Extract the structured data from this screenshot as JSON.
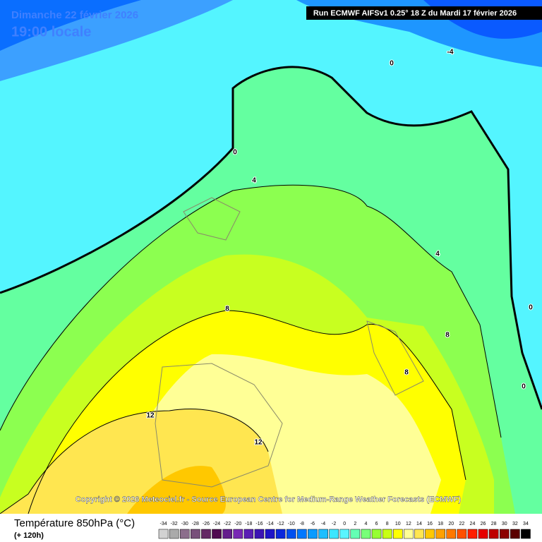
{
  "header": {
    "date": "Dimanche 22 février 2026",
    "time": "19:00 locale",
    "run": "Run ECMWF AIFSv1 0.25° 18 Z du Mardi 17 février 2026"
  },
  "contour_labels": [
    "0",
    "-4",
    "0",
    "4",
    "4",
    "0",
    "8",
    "8",
    "8",
    "0",
    "12",
    "12"
  ],
  "copyright": "Copyright © 2026 Meteociel.fr - Source European Centre for Medium-Range Weather Forecasts (ECMWF)",
  "legend": {
    "title": "Température 850hPa (°C)",
    "subtitle": "(+ 120h)",
    "ticks": [
      -34,
      -32,
      -30,
      -28,
      -26,
      -24,
      -22,
      -20,
      -18,
      -16,
      -14,
      -12,
      -10,
      -8,
      -6,
      -4,
      -2,
      0,
      2,
      4,
      6,
      8,
      10,
      12,
      14,
      16,
      18,
      20,
      22,
      24,
      26,
      28,
      30,
      32,
      34
    ],
    "colors": [
      "#d2d2d2",
      "#aaaaaa",
      "#8c6e8c",
      "#78507a",
      "#642864",
      "#500a50",
      "#641e8c",
      "#7828b4",
      "#5a1eb4",
      "#3c14b4",
      "#1e14c8",
      "#0a28dc",
      "#0050f0",
      "#0078ff",
      "#0a9bff",
      "#1ebeff",
      "#3ce6ff",
      "#5af5ff",
      "#64ffb4",
      "#78ff78",
      "#96ff32",
      "#c8ff14",
      "#ffff00",
      "#ffff96",
      "#ffe650",
      "#ffc800",
      "#ffa000",
      "#ff7800",
      "#ff5000",
      "#ff1e00",
      "#e60000",
      "#be0000",
      "#8c0000",
      "#5a0000",
      "#000000"
    ]
  }
}
